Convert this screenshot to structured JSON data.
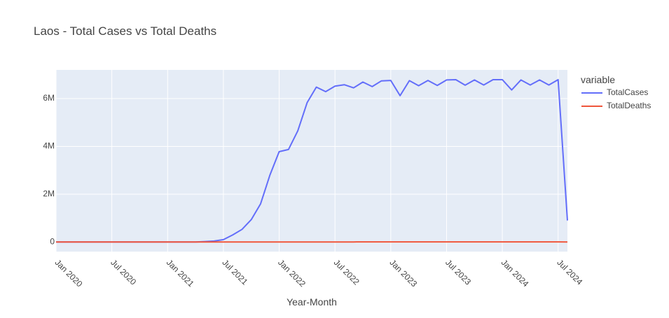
{
  "chart_data": {
    "type": "line",
    "title": "Laos - Total Cases vs Total Deaths",
    "xlabel": "Year-Month",
    "ylabel": "",
    "legend_title": "variable",
    "legend_position": "top-right",
    "grid": true,
    "xlim": [
      "2020-01",
      "2024-08"
    ],
    "ylim": [
      -400000,
      7200000
    ],
    "x_ticks": [
      "2020-01",
      "2020-07",
      "2021-01",
      "2021-07",
      "2022-01",
      "2022-07",
      "2023-01",
      "2023-07",
      "2024-01",
      "2024-07"
    ],
    "x_tick_labels": [
      "Jan 2020",
      "Jul 2020",
      "Jan 2021",
      "Jul 2021",
      "Jan 2022",
      "Jul 2022",
      "Jan 2023",
      "Jul 2023",
      "Jan 2024",
      "Jul 2024"
    ],
    "y_ticks": [
      0,
      2000000,
      4000000,
      6000000
    ],
    "y_tick_labels": [
      "0",
      "2M",
      "4M",
      "6M"
    ],
    "colors": {
      "plot_background": "#E5ECF6",
      "grid": "#ffffff",
      "text": "#444444"
    },
    "x": [
      "2020-01",
      "2020-02",
      "2020-03",
      "2020-04",
      "2020-05",
      "2020-06",
      "2020-07",
      "2020-08",
      "2020-09",
      "2020-10",
      "2020-11",
      "2020-12",
      "2021-01",
      "2021-02",
      "2021-03",
      "2021-04",
      "2021-05",
      "2021-06",
      "2021-07",
      "2021-08",
      "2021-09",
      "2021-10",
      "2021-11",
      "2021-12",
      "2022-01",
      "2022-02",
      "2022-03",
      "2022-04",
      "2022-05",
      "2022-06",
      "2022-07",
      "2022-08",
      "2022-09",
      "2022-10",
      "2022-11",
      "2022-12",
      "2023-01",
      "2023-02",
      "2023-03",
      "2023-04",
      "2023-05",
      "2023-06",
      "2023-07",
      "2023-08",
      "2023-09",
      "2023-10",
      "2023-11",
      "2023-12",
      "2024-01",
      "2024-02",
      "2024-03",
      "2024-04",
      "2024-05",
      "2024-06",
      "2024-07",
      "2024-08"
    ],
    "series": [
      {
        "name": "TotalCases",
        "color": "#636EFA",
        "values": [
          0,
          0,
          0,
          0,
          0,
          0,
          0,
          0,
          0,
          0,
          0,
          0,
          0,
          0,
          0,
          0,
          20000,
          40000,
          100000,
          300000,
          530000,
          940000,
          1600000,
          2800000,
          3780000,
          3870000,
          4650000,
          5830000,
          6480000,
          6290000,
          6520000,
          6580000,
          6450000,
          6690000,
          6500000,
          6740000,
          6760000,
          6120000,
          6750000,
          6540000,
          6760000,
          6550000,
          6780000,
          6790000,
          6560000,
          6780000,
          6570000,
          6790000,
          6790000,
          6360000,
          6780000,
          6570000,
          6780000,
          6570000,
          6790000,
          900000
        ]
      },
      {
        "name": "TotalDeaths",
        "color": "#EF553B",
        "values": [
          0,
          0,
          0,
          0,
          0,
          0,
          0,
          0,
          0,
          0,
          0,
          0,
          0,
          0,
          0,
          0,
          0,
          0,
          10,
          50,
          150,
          300,
          500,
          700,
          900,
          1200,
          1500,
          2000,
          3000,
          3500,
          4000,
          4300,
          4600,
          4900,
          5200,
          5500,
          5800,
          5600,
          6000,
          6100,
          6300,
          6300,
          6500,
          6600,
          6600,
          6700,
          6700,
          6800,
          6800,
          6500,
          6900,
          6800,
          6900,
          6800,
          7000,
          1000
        ]
      }
    ]
  }
}
